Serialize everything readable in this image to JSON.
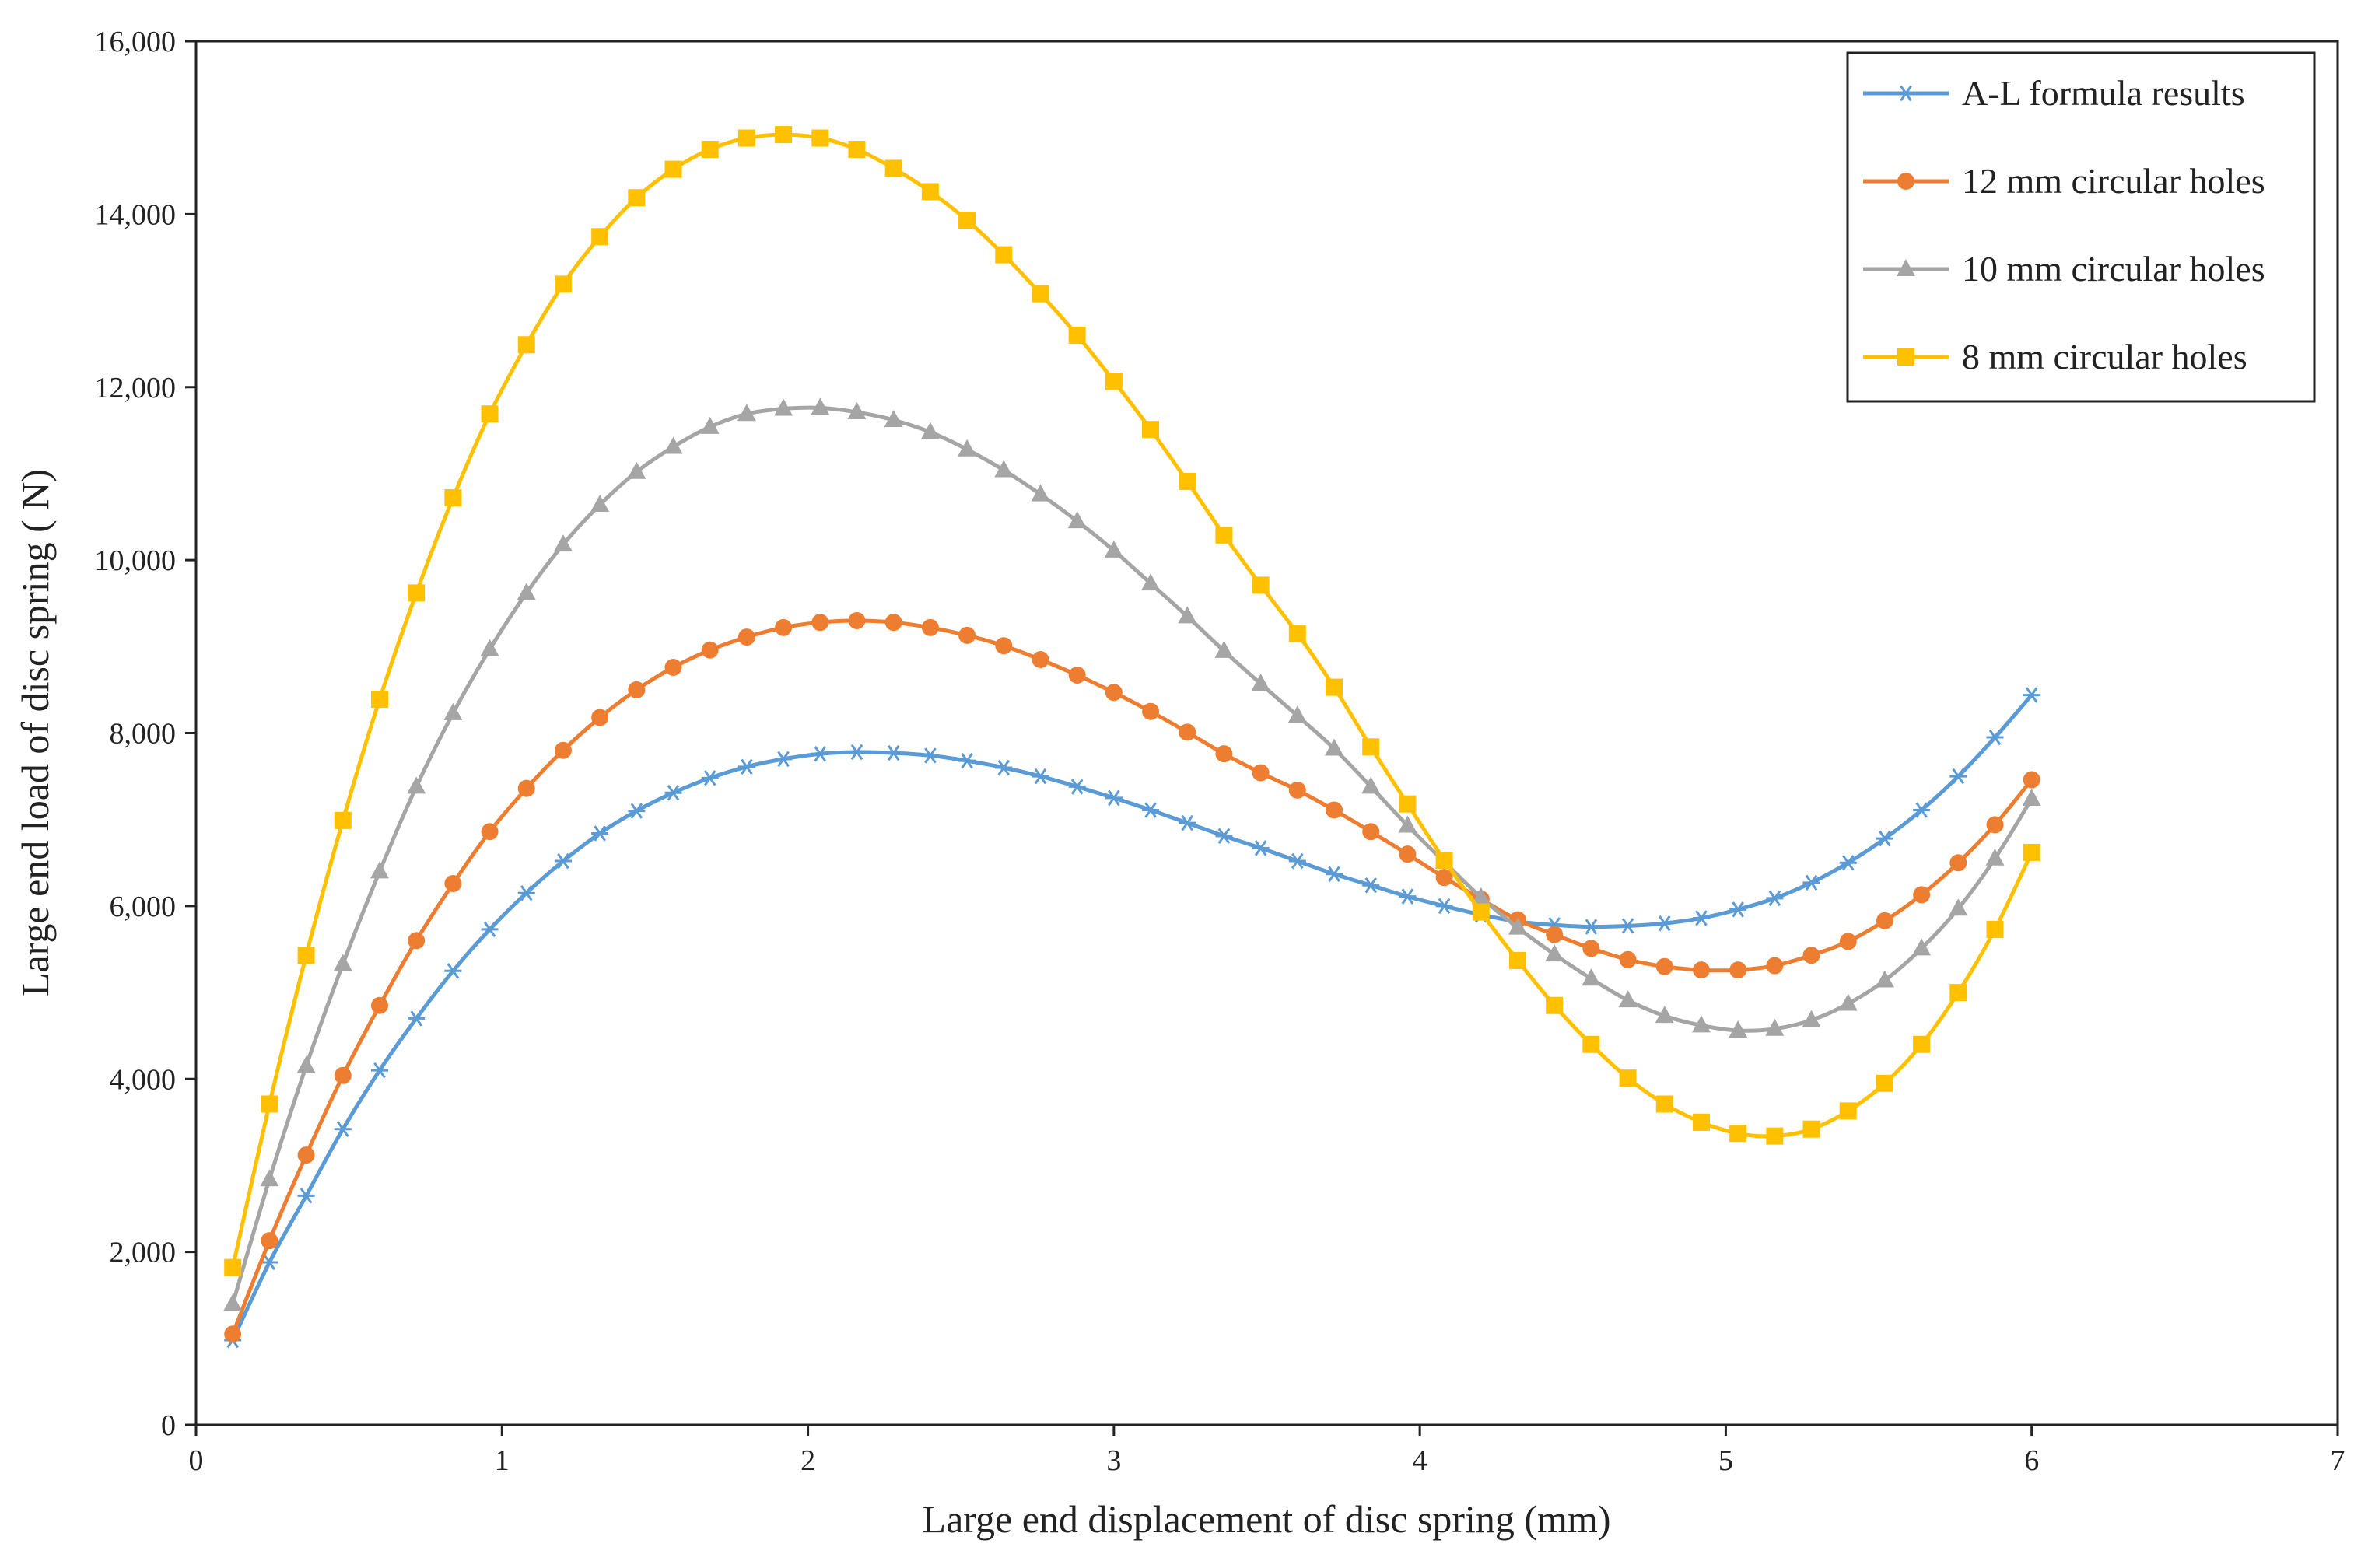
{
  "chart_data": {
    "type": "line",
    "title": "",
    "xlabel": "Large end displacement of disc spring  (mm)",
    "ylabel": "Large end load of disc spring ( N)",
    "xlim": [
      0,
      7
    ],
    "ylim": [
      0,
      16000
    ],
    "xticks": [
      0,
      1,
      2,
      3,
      4,
      5,
      6,
      7
    ],
    "xtick_labels": [
      "0",
      "1",
      "2",
      "3",
      "4",
      "5",
      "6",
      "7"
    ],
    "yticks": [
      0,
      2000,
      4000,
      6000,
      8000,
      10000,
      12000,
      14000,
      16000
    ],
    "ytick_labels": [
      "0",
      "2,000",
      "4,000",
      "6,000",
      "8,000",
      "10,000",
      "12,000",
      "14,000",
      "16,000"
    ],
    "grid": false,
    "legend_position": "top-right",
    "x": [
      0.12,
      0.24,
      0.36,
      0.48,
      0.6,
      0.72,
      0.84,
      0.96,
      1.08,
      1.2,
      1.32,
      1.44,
      1.56,
      1.68,
      1.8,
      1.92,
      2.04,
      2.16,
      2.28,
      2.4,
      2.52,
      2.64,
      2.76,
      2.88,
      3.0,
      3.12,
      3.24,
      3.36,
      3.48,
      3.6,
      3.72,
      3.84,
      3.96,
      4.08,
      4.2,
      4.32,
      4.44,
      4.56,
      4.68,
      4.8,
      4.92,
      5.04,
      5.16,
      5.28,
      5.4,
      5.52,
      5.64,
      5.76,
      5.88,
      6.0
    ],
    "series": [
      {
        "name": "A-L formula results",
        "color": "#5B9BD5",
        "marker": "star",
        "values": [
          980,
          1880,
          2650,
          3420,
          4100,
          4700,
          5250,
          5730,
          6150,
          6520,
          6840,
          7100,
          7310,
          7480,
          7610,
          7700,
          7760,
          7780,
          7770,
          7740,
          7680,
          7600,
          7500,
          7380,
          7250,
          7110,
          6960,
          6810,
          6670,
          6520,
          6370,
          6240,
          6110,
          6000,
          5900,
          5820,
          5780,
          5760,
          5770,
          5800,
          5860,
          5960,
          6090,
          6270,
          6500,
          6780,
          7110,
          7500,
          7950,
          8440
        ]
      },
      {
        "name": "12 mm circular holes",
        "color": "#ED7D31",
        "marker": "circle",
        "values": [
          1050,
          2130,
          3120,
          4040,
          4850,
          5600,
          6260,
          6860,
          7360,
          7800,
          8180,
          8500,
          8760,
          8960,
          9110,
          9220,
          9280,
          9300,
          9280,
          9220,
          9130,
          9010,
          8850,
          8670,
          8470,
          8250,
          8010,
          7760,
          7540,
          7340,
          7110,
          6860,
          6600,
          6330,
          6080,
          5840,
          5670,
          5510,
          5380,
          5300,
          5260,
          5260,
          5310,
          5430,
          5590,
          5830,
          6130,
          6500,
          6940,
          7460
        ]
      },
      {
        "name": "10 mm circular holes",
        "color": "#A5A5A5",
        "marker": "triangle",
        "values": [
          1400,
          2840,
          4150,
          5330,
          6400,
          7380,
          8230,
          8970,
          9620,
          10180,
          10640,
          11020,
          11310,
          11540,
          11690,
          11750,
          11760,
          11710,
          11620,
          11480,
          11280,
          11040,
          10760,
          10450,
          10110,
          9730,
          9350,
          8950,
          8570,
          8200,
          7820,
          7380,
          6930,
          6510,
          6100,
          5750,
          5440,
          5160,
          4910,
          4730,
          4620,
          4560,
          4580,
          4680,
          4870,
          5140,
          5510,
          5970,
          6550,
          7240
        ]
      },
      {
        "name": "8 mm circular holes",
        "color": "#FFC000",
        "marker": "square",
        "values": [
          1820,
          3710,
          5430,
          6990,
          8390,
          9620,
          10720,
          11690,
          12490,
          13190,
          13740,
          14190,
          14520,
          14750,
          14880,
          14920,
          14880,
          14750,
          14530,
          14260,
          13930,
          13530,
          13080,
          12600,
          12070,
          11510,
          10910,
          10290,
          9710,
          9150,
          8530,
          7840,
          7180,
          6530,
          5930,
          5370,
          4850,
          4400,
          4010,
          3710,
          3500,
          3370,
          3340,
          3420,
          3630,
          3950,
          4400,
          5000,
          5730,
          6620
        ]
      }
    ]
  }
}
